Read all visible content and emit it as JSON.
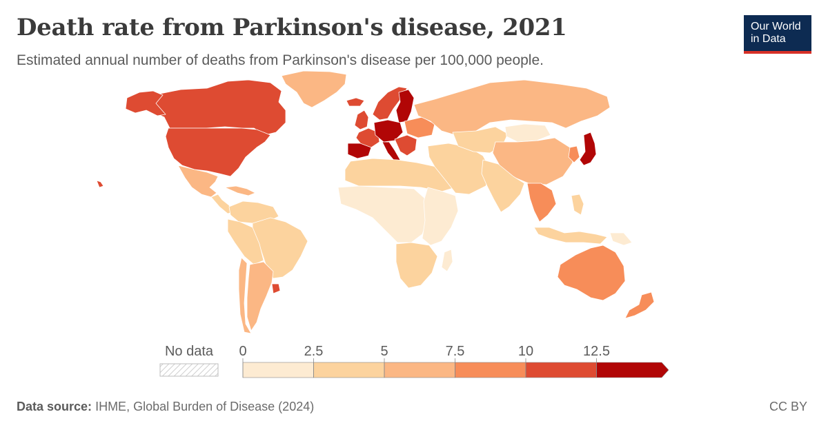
{
  "header": {
    "title": "Death rate from Parkinson's disease, 2021",
    "subtitle": "Estimated annual number of deaths from Parkinson's disease per 100,000 people."
  },
  "logo": {
    "line1": "Our World",
    "line2": "in Data"
  },
  "legend": {
    "no_data_label": "No data",
    "ticks": [
      "0",
      "2.5",
      "5",
      "7.5",
      "10",
      "12.5"
    ],
    "colors": [
      "#fdebd2",
      "#fcd39e",
      "#fbb784",
      "#f78d59",
      "#de4b32",
      "#b10606"
    ]
  },
  "footer": {
    "source_label": "Data source:",
    "source_text": "IHME, Global Burden of Disease (2024)",
    "license": "CC BY"
  },
  "map_regions": [
    {
      "name": "greenland",
      "bin": 2
    },
    {
      "name": "canada",
      "bin": 4
    },
    {
      "name": "alaska",
      "bin": 4
    },
    {
      "name": "united-states",
      "bin": 4
    },
    {
      "name": "mexico",
      "bin": 2
    },
    {
      "name": "central-america",
      "bin": 1
    },
    {
      "name": "caribbean",
      "bin": 2
    },
    {
      "name": "colombia-venezuela",
      "bin": 1
    },
    {
      "name": "brazil",
      "bin": 1
    },
    {
      "name": "peru-bolivia",
      "bin": 1
    },
    {
      "name": "argentina",
      "bin": 2
    },
    {
      "name": "chile",
      "bin": 2
    },
    {
      "name": "uruguay",
      "bin": 4
    },
    {
      "name": "iceland",
      "bin": 4
    },
    {
      "name": "scandinavia",
      "bin": 4
    },
    {
      "name": "finland-baltics",
      "bin": 5
    },
    {
      "name": "uk-ireland",
      "bin": 4
    },
    {
      "name": "france",
      "bin": 4
    },
    {
      "name": "iberia",
      "bin": 5
    },
    {
      "name": "central-europe",
      "bin": 5
    },
    {
      "name": "italy",
      "bin": 5
    },
    {
      "name": "balkans",
      "bin": 4
    },
    {
      "name": "eastern-europe",
      "bin": 3
    },
    {
      "name": "russia",
      "bin": 2
    },
    {
      "name": "north-africa",
      "bin": 1
    },
    {
      "name": "west-central-africa",
      "bin": 0
    },
    {
      "name": "east-africa",
      "bin": 0
    },
    {
      "name": "southern-africa",
      "bin": 1
    },
    {
      "name": "madagascar",
      "bin": 0
    },
    {
      "name": "middle-east",
      "bin": 1
    },
    {
      "name": "central-asia",
      "bin": 1
    },
    {
      "name": "mongolia",
      "bin": 0
    },
    {
      "name": "china",
      "bin": 2
    },
    {
      "name": "south-asia",
      "bin": 1
    },
    {
      "name": "mainland-southeast-asia",
      "bin": 3
    },
    {
      "name": "korea",
      "bin": 3
    },
    {
      "name": "japan",
      "bin": 5
    },
    {
      "name": "indonesia",
      "bin": 1
    },
    {
      "name": "philippines",
      "bin": 1
    },
    {
      "name": "papua-new-guinea",
      "bin": 0
    },
    {
      "name": "australia",
      "bin": 3
    },
    {
      "name": "new-zealand",
      "bin": 3
    },
    {
      "name": "hawaii",
      "bin": 4
    }
  ]
}
